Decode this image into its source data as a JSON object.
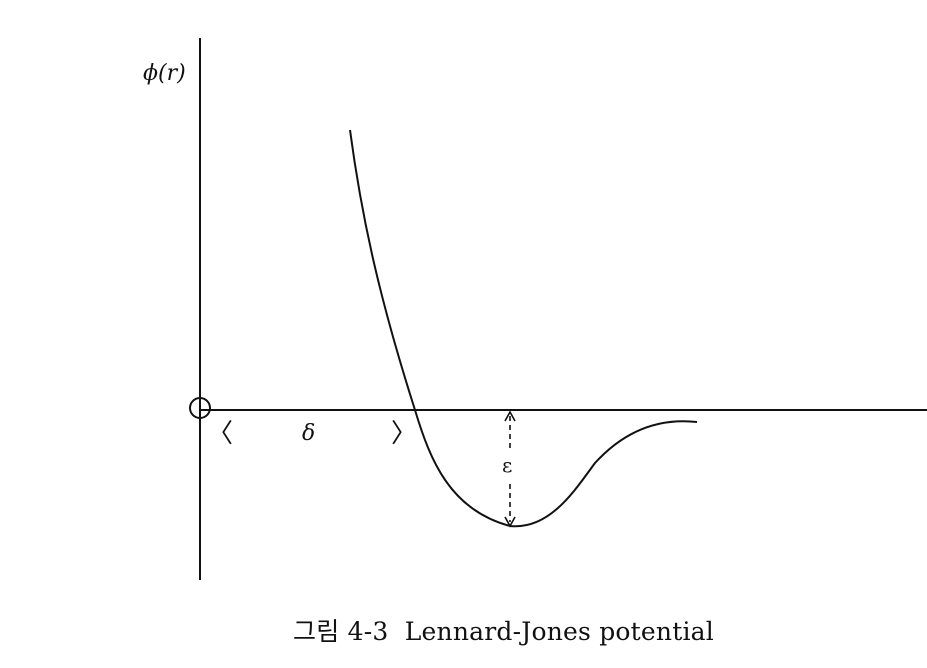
{
  "figure": {
    "y_axis_label": "ϕ(r)",
    "sigma_label": "δ",
    "epsilon_label": "ε",
    "left_bracket": "〈",
    "right_bracket": "〉",
    "caption_number": "그림 4-3",
    "caption_title": "Lennard-Jones potential"
  }
}
